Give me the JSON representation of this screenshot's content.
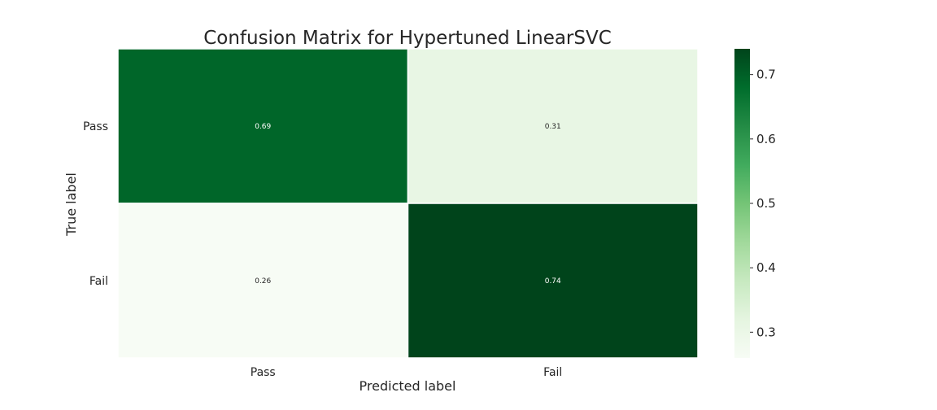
{
  "chart_data": {
    "type": "heatmap",
    "title": "Confusion Matrix for Hypertuned LinearSVC",
    "xlabel": "Predicted label",
    "ylabel": "True label",
    "x_categories": [
      "Pass",
      "Fail"
    ],
    "y_categories": [
      "Pass",
      "Fail"
    ],
    "values": [
      [
        0.69,
        0.31
      ],
      [
        0.26,
        0.74
      ]
    ],
    "value_labels": [
      [
        "0.69",
        "0.31"
      ],
      [
        "0.26",
        "0.74"
      ]
    ],
    "colormap": "Greens",
    "colorbar": {
      "range": [
        0.26,
        0.74
      ],
      "ticks": [
        0.3,
        0.4,
        0.5,
        0.6,
        0.7
      ],
      "tick_labels": [
        "0.3",
        "0.4",
        "0.5",
        "0.6",
        "0.7"
      ]
    },
    "grid": false
  }
}
